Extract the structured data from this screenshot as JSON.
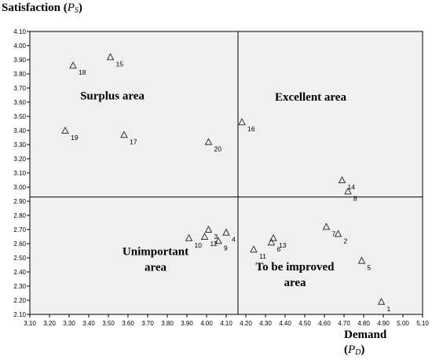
{
  "chart_data": {
    "type": "scatter",
    "y_title": {
      "word": "Satisfaction",
      "open": "(",
      "symbol": "P",
      "sub": "S",
      "close": ")"
    },
    "x_title": {
      "word": "Demand",
      "open": "(",
      "symbol": "P",
      "sub": "D",
      "close": ")"
    },
    "xlim": [
      3.1,
      5.1
    ],
    "ylim": [
      2.1,
      4.1
    ],
    "x_ticks": [
      "3.10",
      "3.20",
      "3.30",
      "3.40",
      "3.50",
      "3.60",
      "3.70",
      "3.80",
      "3.90",
      "4.00",
      "4.10",
      "4.20",
      "4.30",
      "4.40",
      "4.50",
      "4.60",
      "4.70",
      "4.80",
      "4.90",
      "5.00",
      "5.10"
    ],
    "y_ticks": [
      "2.10",
      "2.20",
      "2.30",
      "2.40",
      "2.50",
      "2.60",
      "2.70",
      "2.80",
      "2.90",
      "3.00",
      "3.10",
      "3.20",
      "3.30",
      "3.40",
      "3.50",
      "3.60",
      "3.70",
      "3.80",
      "3.90",
      "4.00",
      "4.10"
    ],
    "divider_x": 4.16,
    "divider_y": 2.93,
    "marker": "open-triangle",
    "plot_background": "#f0f0f0",
    "grid": false,
    "points": [
      {
        "label": "1",
        "x": 4.89,
        "y": 2.19
      },
      {
        "label": "2",
        "x": 4.67,
        "y": 2.67
      },
      {
        "label": "3",
        "x": 4.01,
        "y": 2.7
      },
      {
        "label": "4",
        "x": 4.1,
        "y": 2.68
      },
      {
        "label": "5",
        "x": 4.79,
        "y": 2.48
      },
      {
        "label": "6",
        "x": 4.33,
        "y": 2.61
      },
      {
        "label": "7",
        "x": 4.61,
        "y": 2.72
      },
      {
        "label": "8",
        "x": 4.72,
        "y": 2.97
      },
      {
        "label": "9",
        "x": 4.06,
        "y": 2.62
      },
      {
        "label": "10",
        "x": 3.91,
        "y": 2.64
      },
      {
        "label": "11",
        "x": 4.24,
        "y": 2.56
      },
      {
        "label": "12",
        "x": 3.99,
        "y": 2.65
      },
      {
        "label": "13",
        "x": 4.34,
        "y": 2.64
      },
      {
        "label": "14",
        "x": 4.69,
        "y": 3.05
      },
      {
        "label": "15",
        "x": 3.51,
        "y": 3.92
      },
      {
        "label": "16",
        "x": 4.18,
        "y": 3.46
      },
      {
        "label": "17",
        "x": 3.58,
        "y": 3.37
      },
      {
        "label": "18",
        "x": 3.32,
        "y": 3.86
      },
      {
        "label": "19",
        "x": 3.28,
        "y": 3.4
      },
      {
        "label": "20",
        "x": 4.01,
        "y": 3.32
      }
    ],
    "annotations": [
      {
        "name": "surplus",
        "lines": [
          "Surplus area"
        ],
        "x": 3.52,
        "y": 3.62
      },
      {
        "name": "excellent",
        "lines": [
          "Excellent area"
        ],
        "x": 4.53,
        "y": 3.61
      },
      {
        "name": "unimportant",
        "lines": [
          "Unimportant",
          "area"
        ],
        "x": 3.74,
        "y": 2.52
      },
      {
        "name": "to-be-improved",
        "lines": [
          "To be improved",
          "area"
        ],
        "x": 4.45,
        "y": 2.41
      }
    ]
  }
}
